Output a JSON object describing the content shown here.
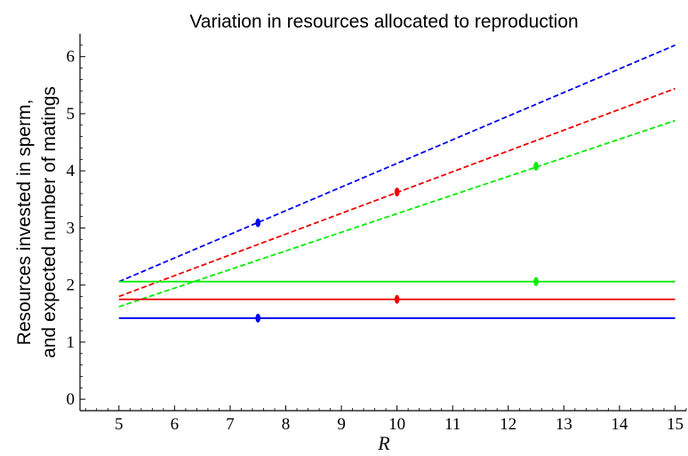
{
  "chart_data": {
    "type": "line",
    "title": "Variation in resources allocated to reproduction",
    "xlabel": "R",
    "ylabel_lines": [
      "Resources invested in sperm,",
      "and expected number of matings"
    ],
    "xlim": [
      4.3,
      15.2
    ],
    "ylim": [
      -0.2,
      6.4
    ],
    "xticks": [
      5,
      6,
      7,
      8,
      9,
      10,
      11,
      12,
      13,
      14,
      15
    ],
    "yticks": [
      0,
      1,
      2,
      3,
      4,
      5,
      6
    ],
    "grid": false,
    "legend": "none",
    "series": [
      {
        "color": "#0000ee",
        "style": "dashed",
        "x": [
          5,
          15
        ],
        "y": [
          2.06,
          6.2
        ],
        "marker": {
          "x": 7.5,
          "y": 3.09
        }
      },
      {
        "color": "#ee0000",
        "style": "dashed",
        "x": [
          5,
          15
        ],
        "y": [
          1.8,
          5.44
        ],
        "marker": {
          "x": 10,
          "y": 3.63
        }
      },
      {
        "color": "#00ee00",
        "style": "dashed",
        "x": [
          5,
          15
        ],
        "y": [
          1.62,
          4.88
        ],
        "marker": {
          "x": 12.5,
          "y": 4.08
        }
      },
      {
        "color": "#00ee00",
        "style": "solid",
        "x": [
          5,
          15
        ],
        "y": [
          2.06,
          2.06
        ],
        "marker": {
          "x": 12.5,
          "y": 2.06
        }
      },
      {
        "color": "#ee0000",
        "style": "solid",
        "x": [
          5,
          15
        ],
        "y": [
          1.75,
          1.75
        ],
        "marker": {
          "x": 10,
          "y": 1.75
        }
      },
      {
        "color": "#0000ee",
        "style": "solid",
        "x": [
          5,
          15
        ],
        "y": [
          1.42,
          1.42
        ],
        "marker": {
          "x": 7.5,
          "y": 1.42
        }
      }
    ]
  }
}
